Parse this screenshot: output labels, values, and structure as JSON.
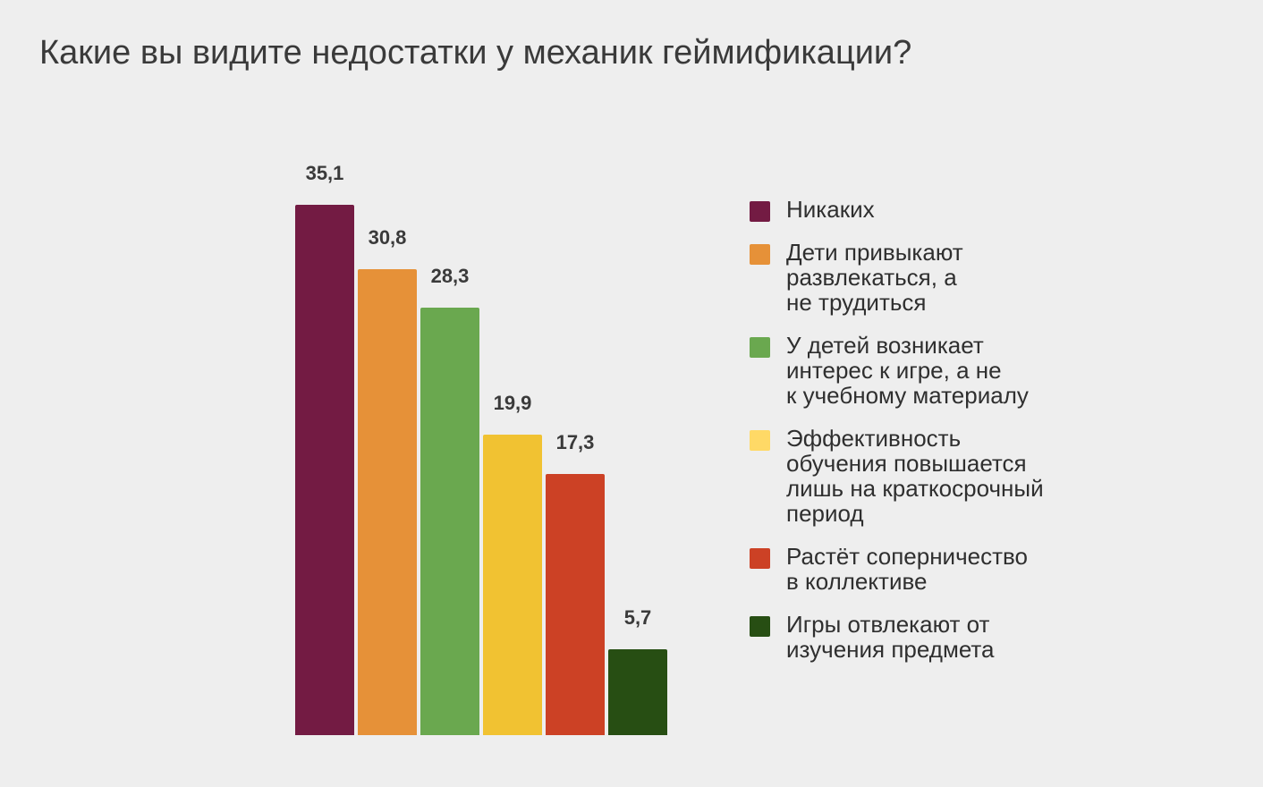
{
  "title": "Какие вы видите недостатки у механик геймификации?",
  "chart_data": {
    "type": "bar",
    "title": "Какие вы видите недостатки у механик геймификации?",
    "xlabel": "",
    "ylabel": "",
    "ylim": [
      0,
      40
    ],
    "grid": false,
    "legend_position": "right",
    "categories": [
      "Никаких",
      "Дети привыкают развлекаться, а не трудиться",
      "У детей возникает интерес к игре, а не к учебному материалу",
      "Эффективность обучения повышается лишь на краткосрочный период",
      "Растёт соперничество в коллективе",
      "Игры отвлекают от изучения предмета"
    ],
    "values": [
      35.1,
      30.8,
      28.3,
      19.9,
      17.3,
      5.7
    ],
    "value_labels": [
      "35,1",
      "30,8",
      "28,3",
      "19,9",
      "17,3",
      "5,7"
    ],
    "colors": [
      "#731b43",
      "#e69138",
      "#6aa84f",
      "#f1c232",
      "#cc4125",
      "#274e13"
    ],
    "legend_lines": [
      [
        "Никаких"
      ],
      [
        "Дети привыкают",
        "развлекаться, а",
        "не трудиться"
      ],
      [
        "У детей возникает",
        "интерес к игре, а не",
        "к учебному материалу"
      ],
      [
        "Эффективность",
        "обучения повышается",
        "лишь на краткосрочный",
        "период"
      ],
      [
        "Растёт соперничество",
        "в коллективе"
      ],
      [
        "Игры отвлекают от",
        "изучения предмета"
      ]
    ],
    "legend_colors": [
      "#731b43",
      "#e69138",
      "#6aa84f",
      "#ffd966",
      "#cc4125",
      "#274e13"
    ]
  }
}
